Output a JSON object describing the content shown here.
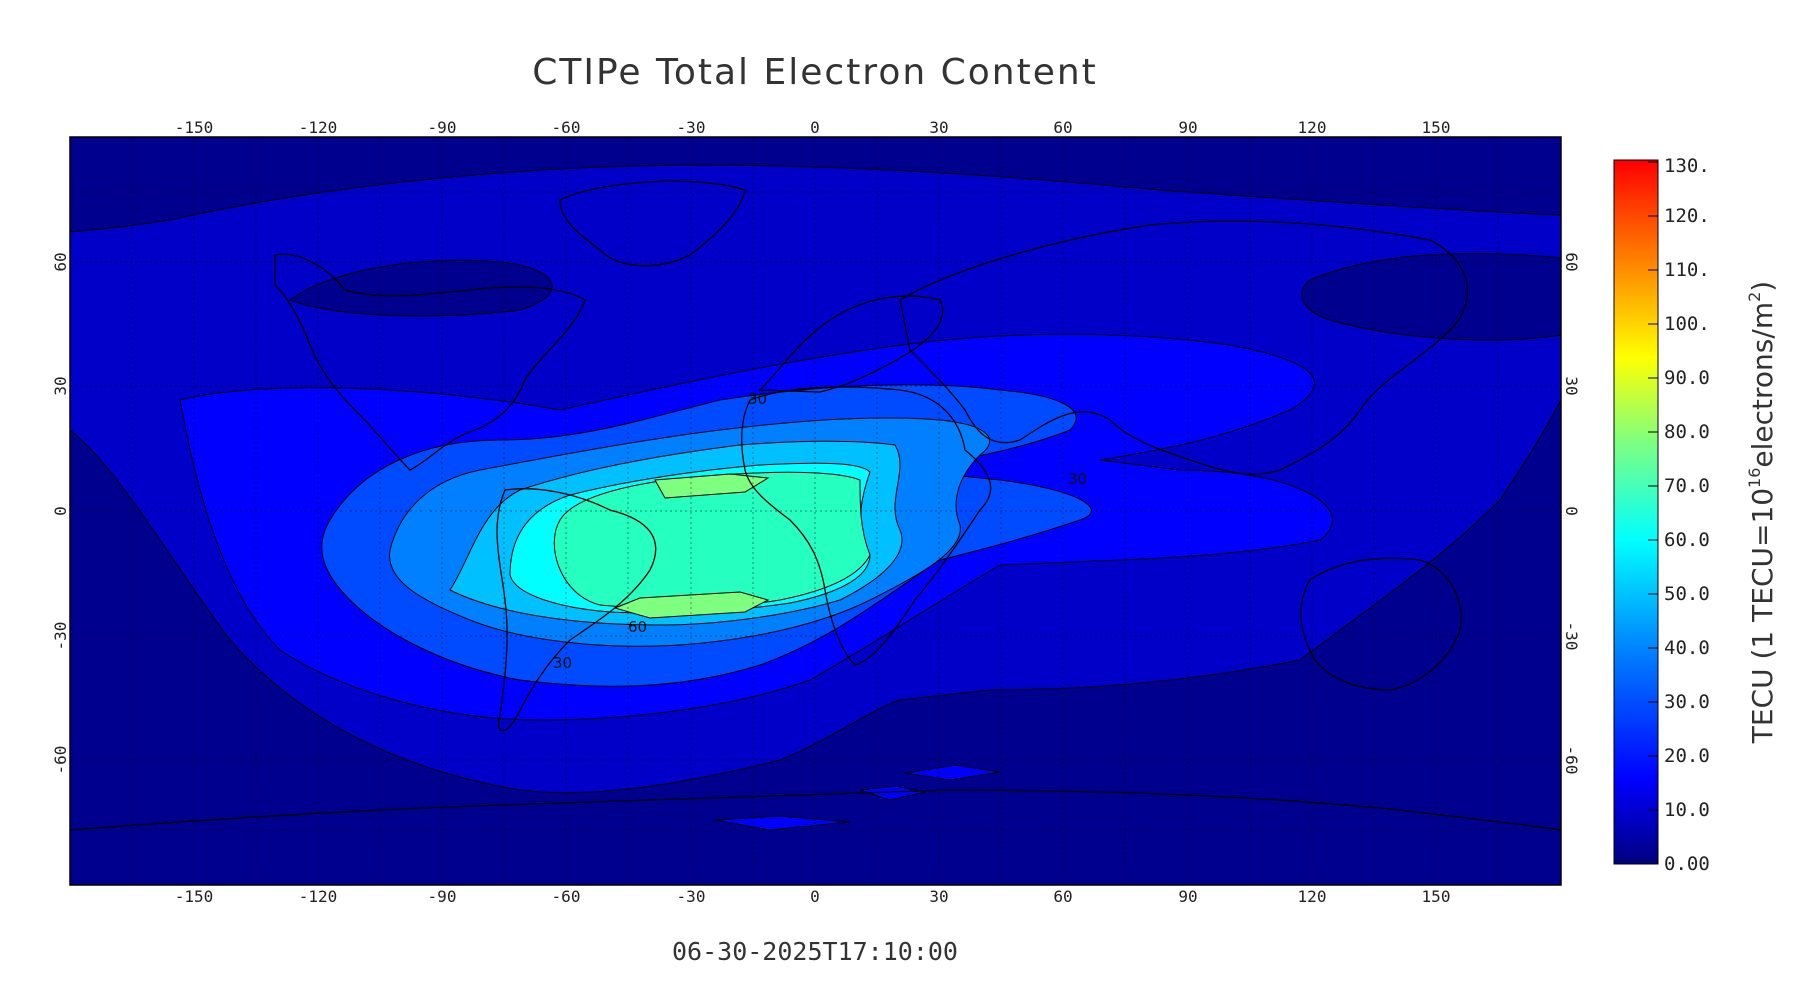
{
  "title": "CTIPe Total Electron Content",
  "timestamp": "06-30-2025T17:10:00",
  "colorbar": {
    "label_prefix": "TECU  (1 TECU=10",
    "label_exponent": "16",
    "label_suffix": "electrons/m",
    "label_exponent2": "2",
    "label_close": ")",
    "ticks": [
      "0.00",
      "10.0",
      "20.0",
      "30.0",
      "40.0",
      "50.0",
      "60.0",
      "70.0",
      "80.0",
      "90.0",
      "100.",
      "110.",
      "120.",
      "130."
    ],
    "range": [
      0,
      130
    ],
    "colors": [
      "#00007f",
      "#0000ff",
      "#007fff",
      "#00ffff",
      "#7fff7f",
      "#ffff00",
      "#ff7f00",
      "#ff0000"
    ]
  },
  "axes": {
    "lon_ticks": [
      "-150",
      "-120",
      "-90",
      "-60",
      "-30",
      "0",
      "30",
      "60",
      "90",
      "120",
      "150"
    ],
    "lat_ticks": [
      "60",
      "30",
      "0",
      "-30",
      "-60"
    ],
    "lon_range": [
      -180,
      180
    ],
    "lat_range": [
      -90,
      90
    ]
  },
  "contour_labels": [
    "30",
    "60",
    "30",
    "30"
  ],
  "chart_data": {
    "type": "heatmap",
    "title": "CTIPe Total Electron Content",
    "subtitle": "06-30-2025T17:10:00",
    "x_ticks": [
      -150,
      -120,
      -90,
      -60,
      -30,
      0,
      30,
      60,
      90,
      120,
      150
    ],
    "y_ticks": [
      60,
      30,
      0,
      -30,
      -60
    ],
    "colorbar_range": [
      0,
      130
    ],
    "contour_levels": [
      10,
      20,
      30,
      40,
      50,
      60,
      70
    ],
    "max_region": {
      "lon": -30,
      "lat": 0,
      "approx_value": 70
    }
  }
}
